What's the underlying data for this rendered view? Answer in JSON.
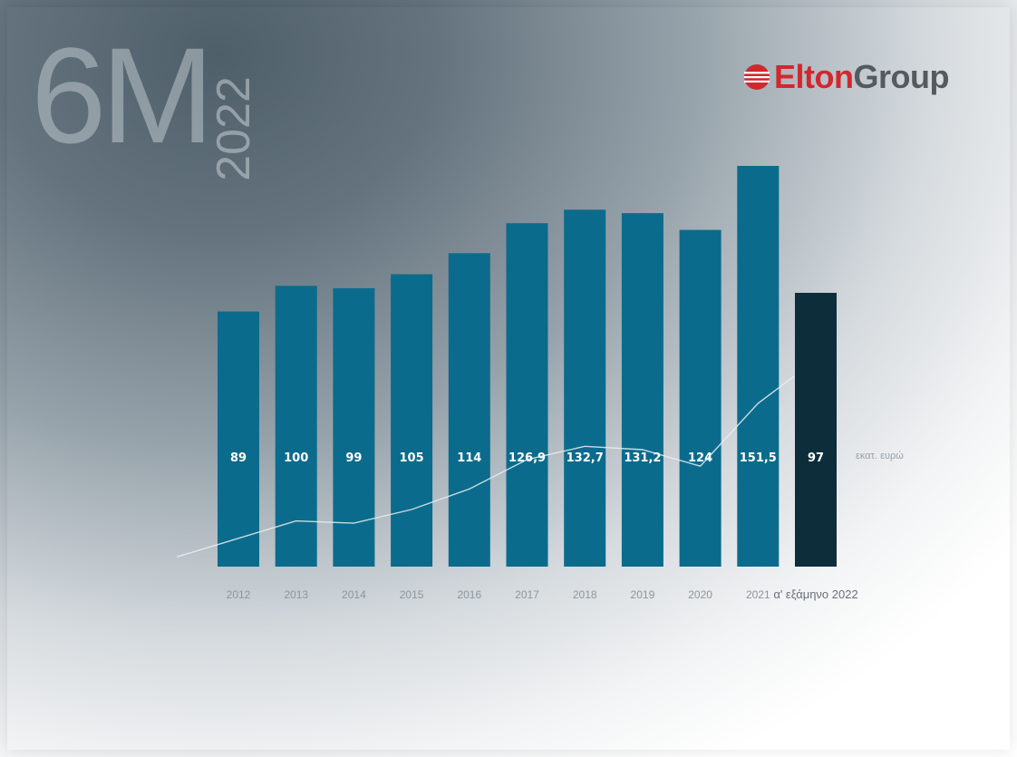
{
  "header": {
    "period_number": "6M",
    "period_year": "2022"
  },
  "brand": {
    "name_part1": "Elton",
    "name_part2": "Group",
    "icon": "elton-logo-icon",
    "accent_color": "#d1282e"
  },
  "unit_label": "εκατ. ευρώ",
  "colors": {
    "bar": "#0b6b8c",
    "bar_highlight": "#0d2d3b",
    "trend_line": "#e9eef1"
  },
  "chart_data": {
    "type": "bar",
    "categories": [
      "2012",
      "2013",
      "2014",
      "2015",
      "2016",
      "2017",
      "2018",
      "2019",
      "2020",
      "2021",
      "α' εξάμηνο 2022"
    ],
    "values": [
      89,
      100,
      99,
      105,
      114,
      126.9,
      132.7,
      131.2,
      124,
      151.5,
      97
    ],
    "value_labels": [
      "89",
      "100",
      "99",
      "105",
      "114",
      "126,9",
      "132,7",
      "131,2",
      "124",
      "151,5",
      "97"
    ],
    "highlight_index": 10,
    "trend_line": true,
    "title": "",
    "xlabel": "",
    "ylabel": "",
    "grid": false,
    "legend": "none"
  }
}
